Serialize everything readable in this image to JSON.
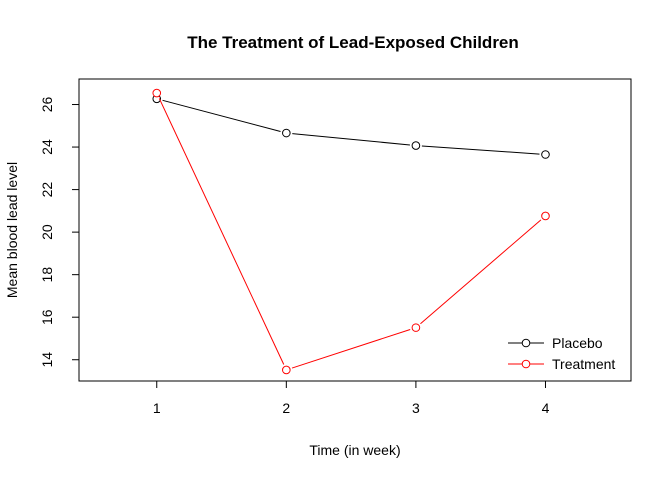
{
  "chart_data": {
    "type": "line",
    "title": "The Treatment of Lead-Exposed Children",
    "xlabel": "Time (in week)",
    "ylabel": "Mean blood lead level",
    "x": [
      1,
      2,
      3,
      4
    ],
    "xlim": [
      0.4,
      4.66
    ],
    "ylim": [
      13,
      27.2
    ],
    "x_ticks": [
      "1",
      "2",
      "3",
      "4"
    ],
    "y_ticks": [
      "14",
      "16",
      "18",
      "20",
      "22",
      "24",
      "26"
    ],
    "grid": false,
    "legend_position": "bottom-right",
    "series": [
      {
        "name": "Placebo",
        "color": "#000000",
        "values": [
          26.27,
          24.66,
          24.07,
          23.65
        ]
      },
      {
        "name": "Treatment",
        "color": "#ff0000",
        "values": [
          26.54,
          13.52,
          15.51,
          20.76
        ]
      }
    ]
  }
}
